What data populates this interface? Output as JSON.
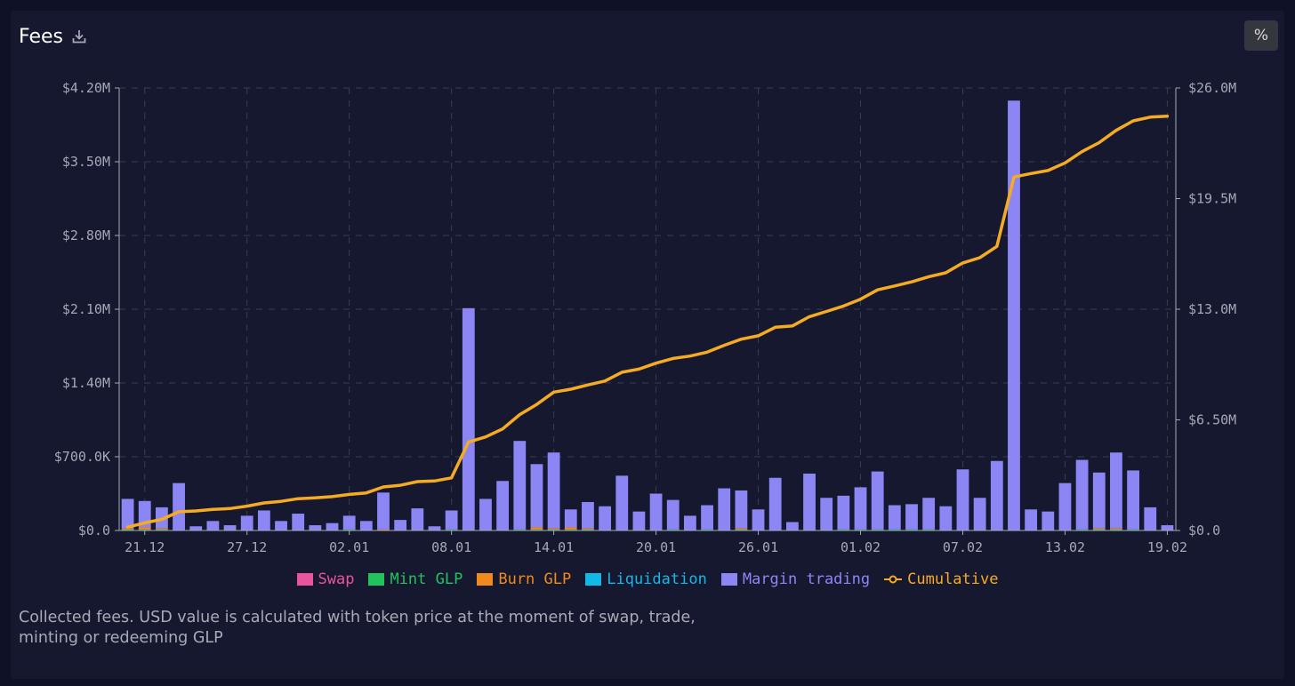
{
  "header": {
    "title": "Fees",
    "download_icon": "download-icon",
    "percent_label": "%"
  },
  "footer": {
    "line1": "Collected fees. USD value is calculated with token price at the moment of swap, trade,",
    "line2": "minting or redeeming GLP"
  },
  "colors": {
    "swap": "#e9549f",
    "mint": "#21c35f",
    "burn": "#f08a1c",
    "liquidation": "#12b8e6",
    "margin": "#8c86f5",
    "cumulative": "#f5ab22",
    "grid": "#3a3c52",
    "axis": "#a6a8b6"
  },
  "chart_data": {
    "type": "bar",
    "x_tick_labels": [
      "21.12",
      "27.12",
      "02.01",
      "08.01",
      "14.01",
      "20.01",
      "26.01",
      "01.02",
      "07.02",
      "13.02",
      "19.02"
    ],
    "y_left": {
      "ticks": [
        "$0.0",
        "$700.0K",
        "$1.40M",
        "$2.10M",
        "$2.80M",
        "$3.50M",
        "$4.20M"
      ],
      "range": [
        0,
        4200000
      ]
    },
    "y_right": {
      "ticks": [
        "$0.0",
        "$6.50M",
        "$13.0M",
        "$19.5M",
        "$26.0M"
      ],
      "range": [
        0,
        26000000
      ]
    },
    "grid": true,
    "legend_position": "bottom",
    "stacked": true,
    "start_date": "2021-12-20",
    "end_date": "2022-02-19",
    "series": [
      {
        "name": "Swap",
        "key": "swap"
      },
      {
        "name": "Mint GLP",
        "key": "mint"
      },
      {
        "name": "Burn GLP",
        "key": "burn"
      },
      {
        "name": "Liquidation",
        "key": "liquidation"
      },
      {
        "name": "Margin trading",
        "key": "margin"
      },
      {
        "name": "Cumulative",
        "key": "cumulative",
        "type": "line",
        "axis": "right"
      }
    ],
    "swap": [
      0,
      0,
      0,
      0,
      0,
      0,
      0,
      0,
      0,
      0,
      0,
      0,
      0,
      0,
      0,
      0,
      0,
      0,
      0,
      0,
      0,
      0,
      0,
      0,
      0,
      0,
      0,
      0,
      0,
      0,
      0,
      0,
      0,
      0,
      0,
      0,
      0,
      0,
      0,
      0,
      0,
      0,
      0,
      0,
      0,
      0,
      0,
      0,
      0,
      0,
      0,
      0,
      0,
      0,
      0,
      0,
      0,
      0,
      0,
      0,
      0,
      0
    ],
    "mint": [
      10000,
      10000,
      10000,
      0,
      0,
      0,
      0,
      0,
      0,
      0,
      0,
      0,
      0,
      10000,
      0,
      0,
      0,
      0,
      0,
      10000,
      0,
      0,
      0,
      10000,
      10000,
      10000,
      10000,
      10000,
      0,
      0,
      0,
      0,
      10000,
      0,
      10000,
      0,
      10000,
      0,
      0,
      0,
      0,
      0,
      10000,
      10000,
      10000,
      10000,
      10000,
      10000,
      0,
      0,
      0,
      0,
      0,
      0,
      0,
      0,
      10000,
      10000,
      10000,
      10000,
      0,
      0
    ],
    "burn": [
      10000,
      20000,
      10000,
      0,
      0,
      0,
      0,
      0,
      0,
      0,
      0,
      0,
      0,
      0,
      0,
      10000,
      0,
      0,
      0,
      0,
      0,
      0,
      0,
      0,
      20000,
      10000,
      20000,
      10000,
      0,
      0,
      0,
      0,
      0,
      0,
      0,
      0,
      10000,
      0,
      0,
      0,
      0,
      0,
      0,
      0,
      0,
      0,
      0,
      0,
      0,
      0,
      0,
      0,
      0,
      0,
      0,
      0,
      0,
      10000,
      10000,
      0,
      0,
      0
    ],
    "liquidation": [
      0,
      0,
      0,
      0,
      0,
      0,
      0,
      0,
      0,
      0,
      0,
      0,
      0,
      0,
      0,
      0,
      0,
      0,
      0,
      0,
      0,
      0,
      0,
      0,
      0,
      0,
      0,
      0,
      0,
      0,
      0,
      0,
      0,
      0,
      0,
      0,
      0,
      0,
      0,
      0,
      0,
      0,
      0,
      0,
      0,
      0,
      0,
      0,
      0,
      0,
      0,
      0,
      0,
      0,
      0,
      0,
      0,
      0,
      0,
      0,
      0,
      0
    ],
    "margin": [
      280000,
      250000,
      200000,
      450000,
      40000,
      90000,
      50000,
      140000,
      190000,
      90000,
      160000,
      50000,
      70000,
      130000,
      90000,
      350000,
      100000,
      210000,
      40000,
      180000,
      2110000,
      300000,
      470000,
      840000,
      600000,
      720000,
      170000,
      250000,
      230000,
      520000,
      180000,
      350000,
      280000,
      140000,
      230000,
      400000,
      360000,
      200000,
      500000,
      80000,
      540000,
      310000,
      320000,
      400000,
      550000,
      230000,
      240000,
      300000,
      230000,
      580000,
      310000,
      660000,
      4080000,
      200000,
      180000,
      450000,
      660000,
      530000,
      720000,
      560000,
      220000,
      50000
    ],
    "cumulative": [
      200000,
      450000,
      650000,
      1100000,
      1150000,
      1240000,
      1290000,
      1430000,
      1620000,
      1710000,
      1870000,
      1920000,
      1990000,
      2120000,
      2210000,
      2560000,
      2660000,
      2870000,
      2910000,
      3090000,
      5200000,
      5500000,
      5970000,
      6810000,
      7410000,
      8130000,
      8300000,
      8550000,
      8780000,
      9300000,
      9480000,
      9830000,
      10110000,
      10250000,
      10480000,
      10880000,
      11240000,
      11440000,
      11940000,
      12020000,
      12560000,
      12870000,
      13190000,
      13590000,
      14140000,
      14370000,
      14610000,
      14910000,
      15140000,
      15720000,
      16030000,
      16690000,
      20770000,
      20970000,
      21150000,
      21600000,
      22260000,
      22790000,
      23510000,
      24070000,
      24290000,
      24340000
    ]
  }
}
